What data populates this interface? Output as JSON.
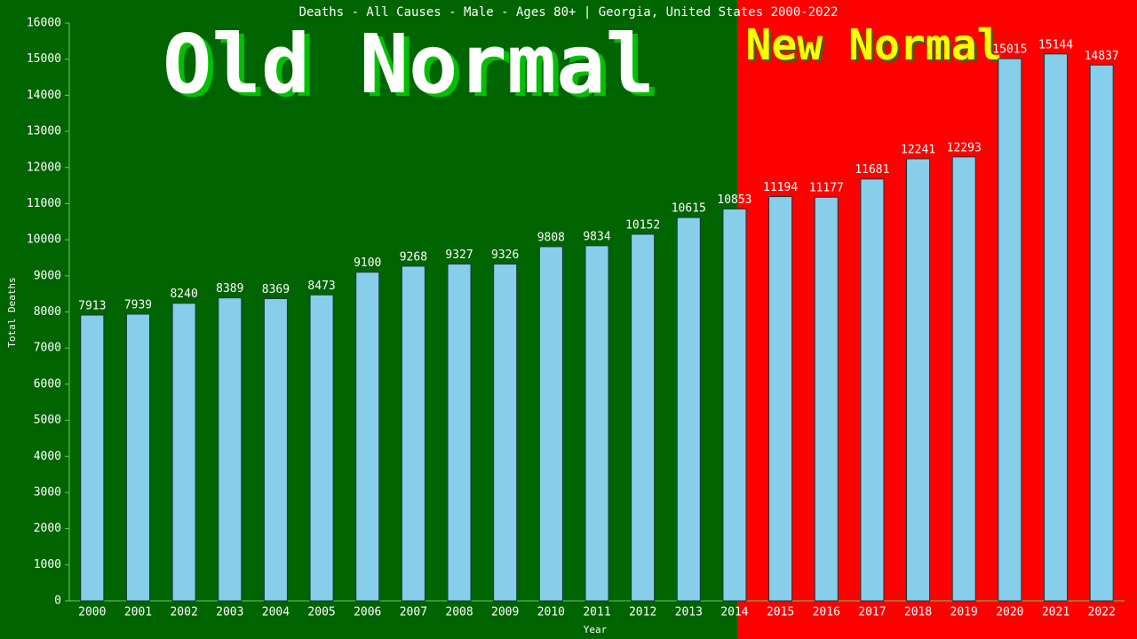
{
  "chart_data": {
    "type": "bar",
    "title": "Deaths - All Causes - Male - Ages 80+ | Georgia, United States 2000-2022",
    "x_label": "Year",
    "y_label": "Total Deaths",
    "annotations": [
      "Old Normal",
      "New Normal"
    ],
    "categories": [
      "2000",
      "2001",
      "2002",
      "2003",
      "2004",
      "2005",
      "2006",
      "2007",
      "2008",
      "2009",
      "2010",
      "2011",
      "2012",
      "2013",
      "2014",
      "2015",
      "2016",
      "2017",
      "2018",
      "2019",
      "2020",
      "2021",
      "2022"
    ],
    "values": [
      7913,
      7939,
      8240,
      8389,
      8369,
      8473,
      9100,
      9268,
      9327,
      9326,
      9808,
      9834,
      10152,
      10615,
      10853,
      11194,
      11177,
      11681,
      12241,
      12293,
      15015,
      15144,
      14837
    ],
    "color": "#87ceeb",
    "ylim": [
      0,
      16000
    ],
    "yticks": [
      0,
      1000,
      2000,
      3000,
      4000,
      5000,
      6000,
      7000,
      8000,
      9000,
      10000,
      11000,
      12000,
      13000,
      14000,
      15000,
      16000
    ]
  }
}
